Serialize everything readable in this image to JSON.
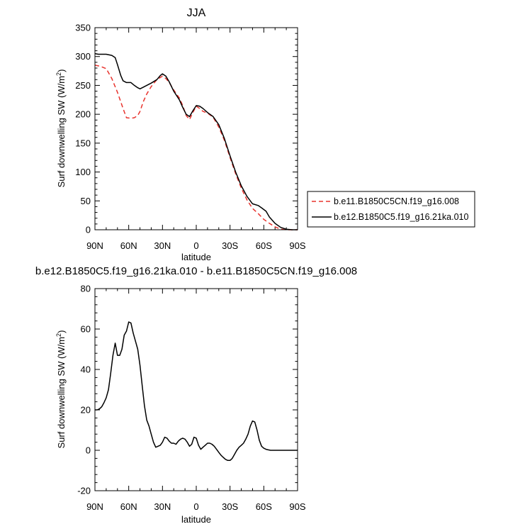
{
  "chart_data": [
    {
      "type": "line",
      "title": "JJA",
      "xlabel": "latitude",
      "ylabel": "Surf downwelling SW (W/m²)",
      "xlim": [
        90,
        -90
      ],
      "ylim": [
        0,
        350
      ],
      "x_ticks": [
        90,
        60,
        30,
        0,
        -30,
        -60,
        -90
      ],
      "x_tick_labels": [
        "90N",
        "60N",
        "30N",
        "0",
        "30S",
        "60S",
        "90S"
      ],
      "y_ticks": [
        0,
        50,
        100,
        150,
        200,
        250,
        300,
        350
      ],
      "y_tick_labels": [
        "0",
        "50",
        "100",
        "150",
        "200",
        "250",
        "300",
        "350"
      ],
      "legend_position": "right",
      "series": [
        {
          "name": "b.e11.B1850C5CN.f19_g16.008",
          "color": "#e8332d",
          "dash": "dashed",
          "x": [
            90,
            85,
            80,
            75,
            70,
            65,
            62,
            58,
            55,
            52,
            50,
            47,
            44,
            40,
            35,
            30,
            27,
            24,
            20,
            15,
            12,
            9,
            6,
            3,
            0,
            -3,
            -6,
            -10,
            -15,
            -20,
            -25,
            -30,
            -35,
            -40,
            -45,
            -50,
            -55,
            -60,
            -65,
            -70,
            -75,
            -80,
            -85,
            -90
          ],
          "y": [
            285,
            283,
            279,
            262,
            238,
            210,
            194,
            193,
            194,
            198,
            205,
            222,
            235,
            248,
            260,
            266,
            262,
            255,
            242,
            228,
            215,
            198,
            191,
            203,
            214,
            210,
            205,
            202,
            195,
            178,
            155,
            125,
            97,
            72,
            52,
            37,
            28,
            18,
            11,
            5,
            1,
            0,
            0,
            0
          ]
        },
        {
          "name": "b.e12.B1850C5.f19_g16.21ka.010",
          "color": "#000000",
          "dash": "solid",
          "x": [
            90,
            87,
            85,
            80,
            75,
            72,
            70,
            67,
            65,
            62,
            58,
            55,
            52,
            50,
            47,
            44,
            40,
            35,
            32,
            30,
            27,
            24,
            20,
            15,
            12,
            9,
            6,
            3,
            0,
            -3,
            -6,
            -10,
            -15,
            -20,
            -25,
            -30,
            -35,
            -40,
            -45,
            -50,
            -55,
            -58,
            -62,
            -65,
            -70,
            -75,
            -80,
            -85,
            -90
          ],
          "y": [
            305,
            304,
            304,
            304,
            302,
            298,
            286,
            267,
            258,
            255,
            255,
            250,
            246,
            244,
            247,
            250,
            254,
            260,
            267,
            270,
            266,
            256,
            240,
            225,
            212,
            200,
            196,
            206,
            215,
            214,
            210,
            203,
            196,
            182,
            158,
            128,
            100,
            76,
            58,
            45,
            42,
            38,
            32,
            22,
            11,
            4,
            1,
            0,
            0
          ]
        }
      ]
    },
    {
      "type": "line",
      "title": "b.e12.B1850C5.f19_g16.21ka.010 - b.e11.B1850C5CN.f19_g16.008",
      "xlabel": "latitude",
      "ylabel": "Surf downwelling SW (W/m²)",
      "xlim": [
        90,
        -90
      ],
      "ylim": [
        -20,
        80
      ],
      "x_ticks": [
        90,
        60,
        30,
        0,
        -30,
        -60,
        -90
      ],
      "x_tick_labels": [
        "90N",
        "60N",
        "30N",
        "0",
        "30S",
        "60S",
        "90S"
      ],
      "y_ticks": [
        -20,
        0,
        20,
        40,
        60,
        80
      ],
      "y_tick_labels": [
        "-20",
        "0",
        "20",
        "40",
        "60",
        "80"
      ],
      "series": [
        {
          "color": "#000000",
          "dash": "solid",
          "x": [
            90,
            88,
            86,
            84,
            82,
            80,
            78,
            76,
            74,
            72,
            70,
            68,
            66,
            64,
            62,
            60,
            58,
            56,
            54,
            52,
            50,
            48,
            46,
            44,
            42,
            40,
            38,
            36,
            34,
            32,
            30,
            28,
            26,
            24,
            22,
            20,
            18,
            16,
            14,
            12,
            10,
            8,
            6,
            4,
            2,
            0,
            -2,
            -4,
            -6,
            -8,
            -10,
            -12,
            -14,
            -16,
            -18,
            -20,
            -22,
            -24,
            -26,
            -28,
            -30,
            -32,
            -34,
            -36,
            -38,
            -40,
            -42,
            -44,
            -46,
            -48,
            -50,
            -52,
            -54,
            -56,
            -58,
            -60,
            -62,
            -64,
            -66,
            -70,
            -75,
            -80,
            -85,
            -90
          ],
          "y": [
            20,
            20,
            20.5,
            21.5,
            23.5,
            26,
            30,
            38,
            47,
            53,
            47,
            47,
            50,
            57,
            59,
            63.5,
            63,
            58,
            54,
            50,
            42,
            32,
            22,
            15,
            12,
            8,
            4,
            1.5,
            2,
            2.5,
            4,
            6.5,
            6,
            4.5,
            3.5,
            3.5,
            3,
            4.5,
            5.5,
            6,
            5.5,
            4,
            2,
            3,
            6.5,
            6,
            2.5,
            0.5,
            1.5,
            2.5,
            3.5,
            3.5,
            3,
            2,
            0.5,
            -1,
            -2.5,
            -3.5,
            -4.5,
            -5,
            -5,
            -4,
            -2,
            0,
            1.5,
            2.5,
            3.5,
            5.5,
            8,
            12,
            14.5,
            14,
            10,
            5,
            2,
            1,
            0.5,
            0.2,
            0,
            0,
            0,
            0,
            0,
            0
          ]
        }
      ]
    }
  ]
}
